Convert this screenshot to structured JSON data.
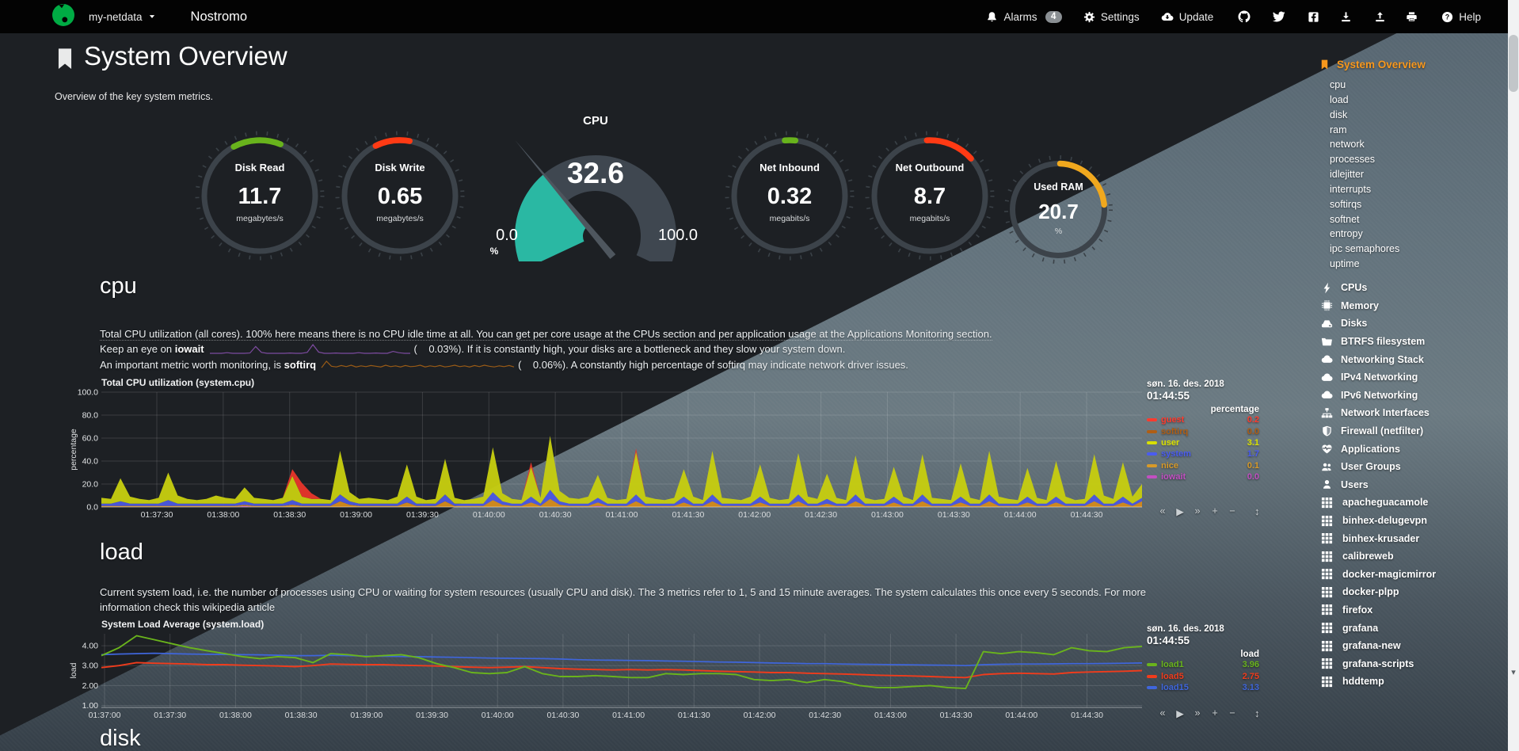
{
  "navbar": {
    "hostname": "my-netdata",
    "brand": "Nostromo",
    "alarms": "Alarms",
    "alarms_badge": "4",
    "settings": "Settings",
    "update": "Update",
    "help": "Help"
  },
  "page": {
    "title": "System Overview",
    "subtitle": "Overview of the key system metrics."
  },
  "colors": {
    "accent_orange": "#f8981d",
    "logo_green": "#00ab44",
    "gauge_green": "#68b31c",
    "gauge_red": "#ff3a14",
    "gauge_amber": "#f0a81e"
  },
  "gauges": [
    {
      "label": "Disk Read",
      "value": "11.7",
      "unit": "megabytes/s",
      "color": "#68b31c",
      "arc": [
        -28,
        22
      ]
    },
    {
      "label": "Disk Write",
      "value": "0.65",
      "unit": "megabytes/s",
      "color": "#ff3a14",
      "arc": [
        -26,
        10
      ]
    },
    {
      "label": "Net Inbound",
      "value": "0.32",
      "unit": "megabits/s",
      "color": "#68b31c",
      "arc": [
        -5,
        6
      ]
    },
    {
      "label": "Net Outbound",
      "value": "8.7",
      "unit": "megabits/s",
      "color": "#ff3a14",
      "arc": [
        -3,
        48
      ]
    },
    {
      "label": "Used RAM",
      "value": "20.7",
      "unit": "%",
      "color": "#f0a81e",
      "arc": [
        2,
        84
      ]
    }
  ],
  "cpu_gauge": {
    "title": "CPU",
    "value": "32.6",
    "min": "0.0",
    "max": "100.0",
    "unit": "%",
    "percent": 32.6,
    "fill_color": "#2ab8a3",
    "track_color": "#3f4750",
    "needle_color": "#4e565e"
  },
  "cpu_section": {
    "heading": "cpu",
    "p1": "Total CPU utilization (all cores). 100% here means there is no CPU idle time at all. You can get per core usage at the CPUs section and per application usage at the Applications Monitoring section.",
    "p2_pre": "Keep an eye on",
    "p2_dim": "iowait",
    "p2_post": "(    0.03%). If it is constantly high, your disks are a bottleneck and they slow your system down.",
    "p3_pre": "An important metric worth monitoring, is",
    "p3_dim": "softirq",
    "p3_post": "(    0.06%). A constantly high percentage of softirq may indicate network driver issues."
  },
  "sparklines": {
    "iowait": {
      "color": "#7d4ba0",
      "values": [
        0,
        0,
        0,
        0.2,
        0,
        0,
        0,
        0.1,
        2.2,
        0.3,
        0,
        0,
        0,
        0,
        0.1,
        0,
        0,
        0.3,
        2.8,
        0.4,
        0,
        0,
        0.1,
        0,
        0,
        0,
        0.2,
        0,
        0,
        0.1,
        0,
        0,
        0.6,
        0.2,
        0,
        0
      ]
    },
    "softirq": {
      "color": "#9a5b16",
      "values": [
        0.2,
        2,
        0.6,
        0.4,
        0.8,
        0.5,
        0.9,
        0.4,
        0.7,
        0.5,
        0.8,
        0.6,
        0.4,
        0.9,
        0.5,
        0.7,
        0.4,
        0.8,
        0.5,
        0.6,
        0.9,
        0.4,
        0.7,
        0.5,
        0.8,
        0.4,
        0.6,
        0.9,
        0.5,
        0.7,
        0.4,
        0.8,
        0.5,
        0.9,
        0.6,
        0.4,
        0.7,
        0.5,
        0.8,
        0.4
      ]
    }
  },
  "cpu_chart": {
    "title": "Total CPU utilization (system.cpu)",
    "date": "søn. 16. des. 2018",
    "time": "01:44:55",
    "units": "percentage",
    "ylabel": "percentage",
    "ymax": 100,
    "yticks": [
      "100.0",
      "80.0",
      "60.0",
      "40.0",
      "20.0",
      "0.0"
    ],
    "xticks": [
      "01:37:30",
      "01:38:00",
      "01:38:30",
      "01:39:00",
      "01:39:30",
      "01:40:00",
      "01:40:30",
      "01:41:00",
      "01:41:30",
      "01:42:00",
      "01:42:30",
      "01:43:00",
      "01:43:30",
      "01:44:00",
      "01:44:30"
    ],
    "legend": [
      {
        "name": "guest",
        "value": "0.2",
        "color": "#ff3b2e"
      },
      {
        "name": "softirq",
        "value": "0.0",
        "color": "#b05e14"
      },
      {
        "name": "user",
        "value": "3.1",
        "color": "#d8e000",
        "highlight": true
      },
      {
        "name": "system",
        "value": "1.7",
        "color": "#4a5cf0"
      },
      {
        "name": "nice",
        "value": "0.1",
        "color": "#d89a28"
      },
      {
        "name": "iowait",
        "value": "0.0",
        "color": "#c24fc2"
      }
    ],
    "stack": [
      {
        "name": "iowait",
        "color": "#bb4fc0",
        "values": [
          0,
          0,
          0,
          0,
          0,
          0,
          0,
          0,
          0,
          0,
          0,
          0,
          0,
          0,
          0,
          1,
          0,
          0,
          0,
          0,
          0,
          0,
          0,
          0,
          0,
          0,
          0,
          0,
          0,
          0,
          0,
          0,
          0,
          0,
          0,
          0,
          0,
          0,
          0,
          0,
          0,
          0,
          0,
          0,
          0,
          0,
          0,
          0,
          0,
          0,
          0,
          0,
          1,
          0,
          0,
          0,
          0,
          0,
          0,
          0,
          0,
          0,
          0,
          0,
          0,
          0,
          0,
          0,
          0,
          0,
          0,
          0,
          0,
          0,
          0,
          0,
          0,
          0,
          0,
          0,
          0,
          0,
          0,
          0,
          0,
          0,
          0,
          0,
          0,
          0,
          0,
          0,
          0,
          0,
          0,
          0,
          0,
          0,
          0,
          0,
          0,
          0,
          0,
          0,
          0,
          0,
          0,
          0,
          0,
          0
        ]
      },
      {
        "name": "nice",
        "color": "#d2891b",
        "values": [
          1,
          1,
          1,
          1,
          1,
          1,
          1,
          1,
          1,
          1,
          1,
          1,
          1,
          1,
          1,
          1,
          1,
          1,
          1,
          1,
          2,
          1,
          1,
          1,
          1,
          5,
          2,
          1,
          1,
          1,
          1,
          1,
          4,
          1,
          1,
          1,
          5,
          1,
          1,
          1,
          1,
          6,
          2,
          1,
          1,
          4,
          1,
          7,
          2,
          1,
          1,
          1,
          3,
          1,
          1,
          1,
          5,
          1,
          1,
          1,
          1,
          4,
          1,
          1,
          5,
          1,
          1,
          1,
          1,
          4,
          1,
          1,
          1,
          5,
          1,
          1,
          3,
          1,
          1,
          5,
          1,
          1,
          1,
          4,
          1,
          1,
          5,
          1,
          1,
          1,
          4,
          1,
          1,
          5,
          1,
          1,
          1,
          4,
          1,
          1,
          4,
          1,
          1,
          1,
          5,
          1,
          1,
          4,
          1,
          5
        ]
      },
      {
        "name": "system",
        "color": "#4b57e0",
        "values": [
          2,
          2,
          4,
          2,
          2,
          2,
          2,
          5,
          2,
          2,
          2,
          2,
          2,
          2,
          2,
          3,
          2,
          2,
          2,
          2,
          4,
          2,
          2,
          2,
          2,
          6,
          3,
          2,
          2,
          2,
          2,
          2,
          5,
          2,
          2,
          2,
          6,
          2,
          2,
          2,
          2,
          7,
          3,
          2,
          2,
          5,
          2,
          8,
          3,
          2,
          2,
          2,
          4,
          2,
          2,
          2,
          6,
          2,
          2,
          2,
          2,
          5,
          2,
          2,
          6,
          2,
          2,
          2,
          2,
          5,
          2,
          2,
          2,
          6,
          2,
          2,
          4,
          2,
          2,
          6,
          2,
          2,
          2,
          5,
          2,
          2,
          6,
          2,
          2,
          2,
          5,
          2,
          2,
          6,
          2,
          2,
          2,
          5,
          2,
          2,
          5,
          2,
          2,
          2,
          6,
          2,
          2,
          5,
          2,
          3
        ]
      },
      {
        "name": "user",
        "color": "#c6cd10",
        "values": [
          5,
          4,
          20,
          6,
          4,
          3,
          5,
          24,
          7,
          4,
          3,
          4,
          7,
          5,
          4,
          12,
          5,
          4,
          3,
          5,
          21,
          6,
          4,
          4,
          3,
          38,
          8,
          4,
          5,
          4,
          3,
          6,
          28,
          6,
          3,
          4,
          31,
          5,
          3,
          4,
          6,
          39,
          7,
          4,
          3,
          26,
          5,
          47,
          9,
          5,
          4,
          6,
          20,
          5,
          3,
          4,
          37,
          6,
          4,
          3,
          5,
          24,
          6,
          3,
          38,
          5,
          4,
          3,
          6,
          28,
          5,
          3,
          4,
          36,
          6,
          4,
          22,
          5,
          3,
          34,
          5,
          3,
          4,
          26,
          6,
          3,
          35,
          5,
          4,
          3,
          29,
          5,
          3,
          38,
          6,
          4,
          3,
          25,
          5,
          3,
          31,
          6,
          3,
          4,
          35,
          7,
          4,
          30,
          6,
          12
        ]
      },
      {
        "name": "guest",
        "color": "#e6352b",
        "values": [
          0,
          0,
          0,
          0,
          0,
          0,
          0,
          0,
          0,
          0,
          0,
          0,
          0,
          0,
          0,
          0,
          0,
          0,
          0,
          0,
          6,
          12,
          5,
          0,
          0,
          0,
          0,
          0,
          0,
          0,
          0,
          0,
          0,
          0,
          0,
          0,
          0,
          0,
          0,
          0,
          0,
          0,
          0,
          0,
          0,
          4,
          0,
          0,
          0,
          0,
          0,
          0,
          0,
          0,
          0,
          0,
          3,
          0,
          0,
          0,
          0,
          0,
          0,
          0,
          0,
          0,
          0,
          0,
          0,
          0,
          0,
          0,
          0,
          0,
          0,
          0,
          0,
          0,
          0,
          0,
          0,
          0,
          0,
          0,
          0,
          0,
          0,
          0,
          0,
          0,
          0,
          0,
          0,
          0,
          0,
          0,
          0,
          0,
          0,
          0,
          0,
          0,
          0,
          0,
          0,
          0,
          0,
          0,
          0,
          0
        ]
      }
    ]
  },
  "load_section": {
    "heading": "load",
    "p1": "Current system load, i.e. the number of processes using CPU or waiting for system resources (usually CPU and disk). The 3 metrics refer to 1, 5 and 15 minute averages. The system calculates this once every 5 seconds. For more",
    "p2": "information check this wikipedia article"
  },
  "load_chart": {
    "title": "System Load Average (system.load)",
    "date": "søn. 16. des. 2018",
    "time": "01:44:55",
    "units": "load",
    "ylabel": "load",
    "yrange": [
      0.9,
      4.6
    ],
    "yticks": [
      {
        "label": "4.00",
        "value": 4
      },
      {
        "label": "3.00",
        "value": 3
      },
      {
        "label": "2.00",
        "value": 2
      },
      {
        "label": "1.00",
        "value": 1
      }
    ],
    "xticks": [
      "01:37:00",
      "01:37:30",
      "01:38:00",
      "01:38:30",
      "01:39:00",
      "01:39:30",
      "01:40:00",
      "01:40:30",
      "01:41:00",
      "01:41:30",
      "01:42:00",
      "01:42:30",
      "01:43:00",
      "01:43:30",
      "01:44:00",
      "01:44:30"
    ],
    "legend": [
      {
        "name": "load1",
        "value": "3.96",
        "color": "#6ab41c"
      },
      {
        "name": "load5",
        "value": "2.75",
        "color": "#f03c1c"
      },
      {
        "name": "load15",
        "value": "3.13",
        "color": "#3f66dc"
      }
    ],
    "series": [
      {
        "name": "load15",
        "color": "#3f66dc",
        "width": 1.7,
        "values": [
          3.55,
          3.58,
          3.6,
          3.62,
          3.6,
          3.58,
          3.57,
          3.56,
          3.55,
          3.54,
          3.52,
          3.5,
          3.5,
          3.52,
          3.5,
          3.48,
          3.47,
          3.46,
          3.45,
          3.43,
          3.42,
          3.4,
          3.38,
          3.37,
          3.36,
          3.35,
          3.33,
          3.3,
          3.28,
          3.27,
          3.26,
          3.25,
          3.23,
          3.22,
          3.2,
          3.18,
          3.17,
          3.15,
          3.13,
          3.12,
          3.1,
          3.1,
          3.08,
          3.07,
          3.06,
          3.05,
          3.04,
          3.03,
          3.02,
          3.0,
          3.05,
          3.07,
          3.08,
          3.08,
          3.09,
          3.1,
          3.1,
          3.11,
          3.12,
          3.13
        ]
      },
      {
        "name": "load5",
        "color": "#f03c1c",
        "width": 1.9,
        "values": [
          2.9,
          3.0,
          3.15,
          3.12,
          3.1,
          3.08,
          3.05,
          3.05,
          3.02,
          3.0,
          2.98,
          2.95,
          3.0,
          3.08,
          3.06,
          3.05,
          3.05,
          3.02,
          3.0,
          2.98,
          2.95,
          2.92,
          2.9,
          2.92,
          2.95,
          2.9,
          2.85,
          2.82,
          2.8,
          2.78,
          2.8,
          2.78,
          2.8,
          2.78,
          2.75,
          2.72,
          2.7,
          2.68,
          2.65,
          2.65,
          2.62,
          2.6,
          2.58,
          2.55,
          2.52,
          2.5,
          2.48,
          2.45,
          2.42,
          2.4,
          2.55,
          2.6,
          2.62,
          2.6,
          2.58,
          2.65,
          2.68,
          2.7,
          2.72,
          2.75
        ]
      },
      {
        "name": "load1",
        "color": "#6ab41c",
        "width": 1.9,
        "values": [
          3.5,
          3.9,
          4.5,
          4.3,
          4.1,
          3.9,
          3.75,
          3.6,
          3.45,
          3.35,
          3.45,
          3.4,
          3.15,
          3.6,
          3.55,
          3.45,
          3.5,
          3.55,
          3.4,
          3.1,
          2.9,
          2.65,
          2.6,
          2.65,
          2.95,
          2.6,
          2.45,
          2.45,
          2.5,
          2.45,
          2.4,
          2.4,
          2.6,
          2.55,
          2.6,
          2.6,
          2.55,
          2.3,
          2.25,
          2.3,
          2.15,
          2.3,
          2.2,
          2.0,
          1.9,
          1.9,
          1.95,
          2.0,
          1.9,
          1.85,
          3.7,
          3.6,
          3.7,
          3.65,
          3.55,
          3.9,
          3.75,
          3.7,
          3.9,
          3.96
        ]
      }
    ]
  },
  "disk_section": {
    "heading": "disk"
  },
  "toolbar": {
    "skip_back": "«",
    "play": "▶",
    "skip_forward": "»",
    "zoom_in": "+",
    "zoom_out": "−",
    "resize": "↕"
  },
  "sidebar": {
    "active": "System Overview",
    "sub_items": [
      "cpu",
      "load",
      "disk",
      "ram",
      "network",
      "processes",
      "idlejitter",
      "interrupts",
      "softirqs",
      "softnet",
      "entropy",
      "ipc semaphores",
      "uptime"
    ],
    "sections": [
      {
        "label": "CPUs",
        "icon": "bolt"
      },
      {
        "label": "Memory",
        "icon": "microchip"
      },
      {
        "label": "Disks",
        "icon": "hdd"
      },
      {
        "label": "BTRFS filesystem",
        "icon": "folder-open"
      },
      {
        "label": "Networking Stack",
        "icon": "cloud"
      },
      {
        "label": "IPv4 Networking",
        "icon": "cloud"
      },
      {
        "label": "IPv6 Networking",
        "icon": "cloud"
      },
      {
        "label": "Network Interfaces",
        "icon": "sitemap"
      },
      {
        "label": "Firewall (netfilter)",
        "icon": "shield"
      },
      {
        "label": "Applications",
        "icon": "heartbeat"
      },
      {
        "label": "User Groups",
        "icon": "users"
      },
      {
        "label": "Users",
        "icon": "user"
      }
    ],
    "apps": [
      "apacheguacamole",
      "binhex-delugevpn",
      "binhex-krusader",
      "calibreweb",
      "docker-magicmirror",
      "docker-plpp",
      "firefox",
      "grafana",
      "grafana-new",
      "grafana-scripts",
      "hddtemp"
    ]
  }
}
